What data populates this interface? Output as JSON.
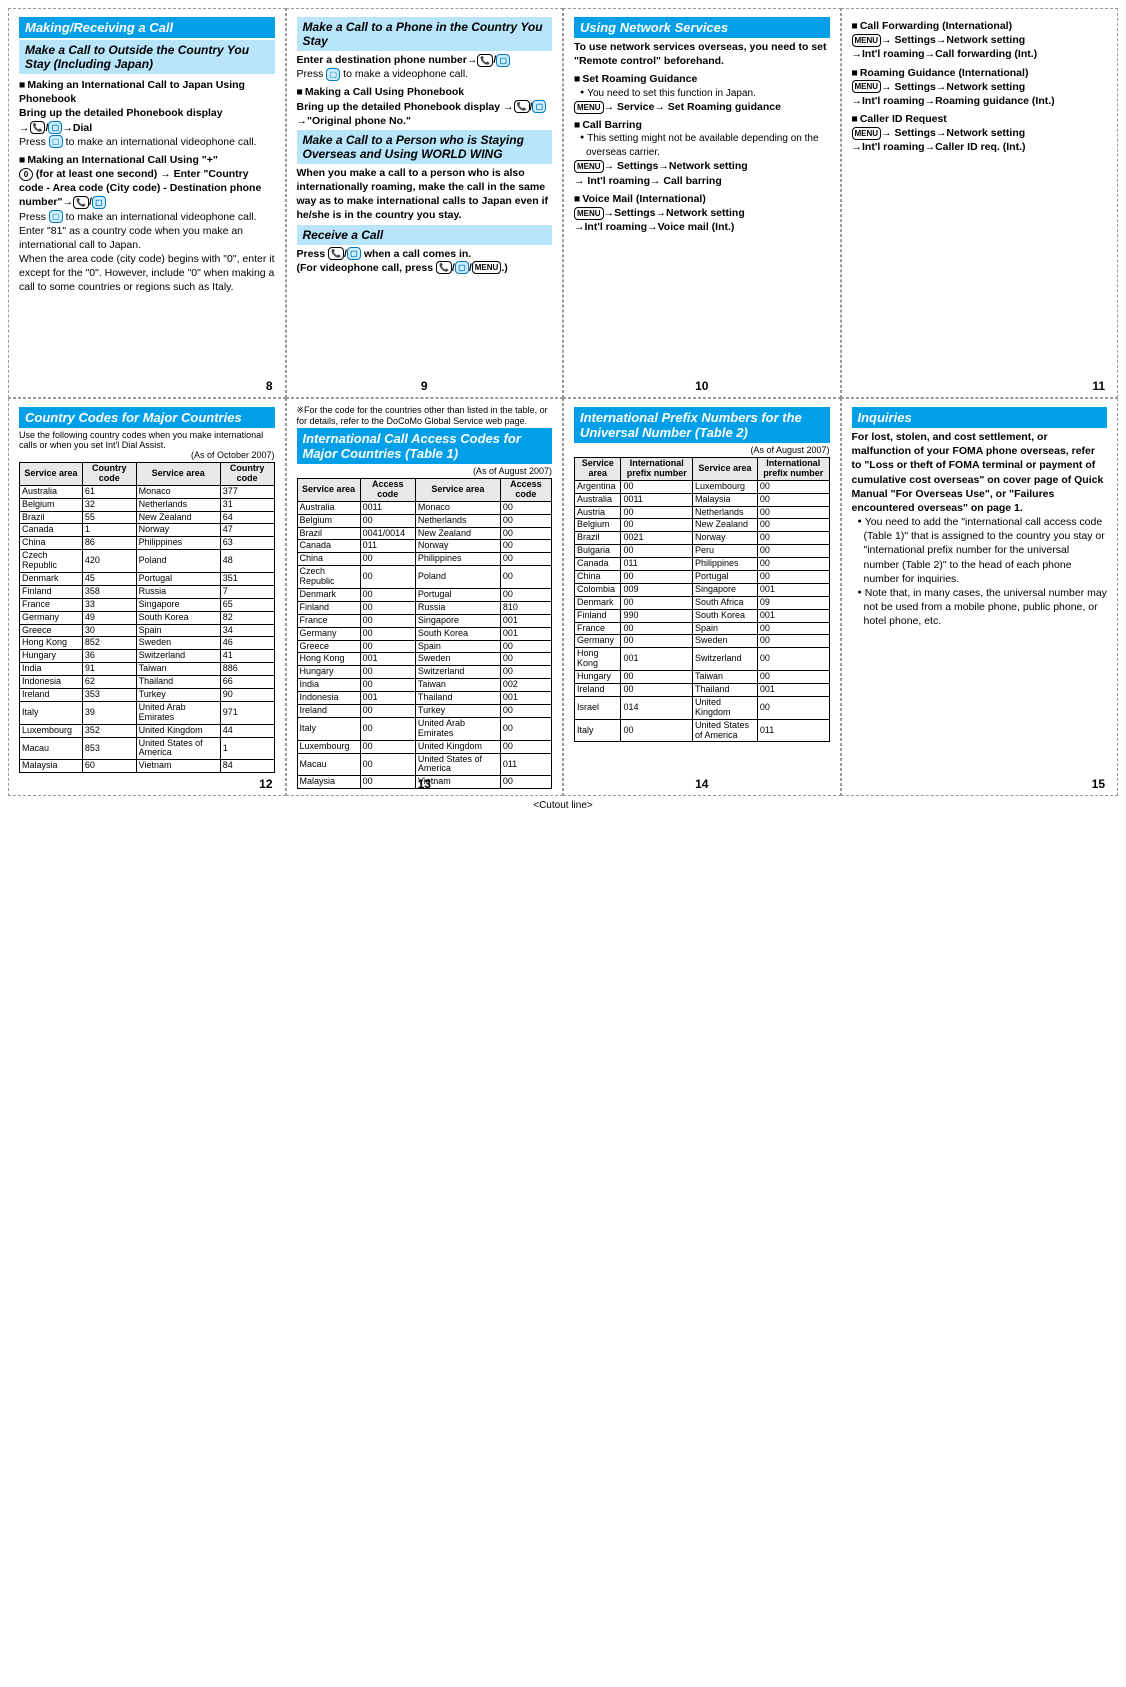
{
  "panels": {
    "p8": {
      "h1": "Making/Receiving a Call",
      "h2": "Make a Call to Outside the Country You Stay (Including Japan)",
      "s1": "Making an International Call to Japan Using Phonebook",
      "b1a": "Bring up the detailed Phonebook display",
      "b1b": "→ 📞 / 📷 →Dial",
      "b1c": "Press 📷 to make an international videophone call.",
      "s2": "Making an International Call Using \"+\"",
      "b2a": "⓪ (for at least one second) → Enter \"Country code - Area code (City code) - Destination phone number\"→ 📞 / 📷",
      "b2b": "Press 📷 to make an international videophone call.",
      "b2c": "Enter \"81\" as a country code when you make an international call to Japan.",
      "b2d": "When the area code (city code) begins with \"0\", enter it except for the \"0\". However, include \"0\" when making a call to some countries or regions such as Italy.",
      "page": "8"
    },
    "p9": {
      "h2a": "Make a Call to a Phone in the Country You Stay",
      "b1a": "Enter a destination phone number→ 📞 / 📷",
      "b1b": "Press 📷 to make a videophone call.",
      "s1": "Making a Call Using Phonebook",
      "b1c": "Bring up the detailed Phonebook display → 📞 / 📷 →\"Original phone No.\"",
      "h2b": "Make a Call to a Person who is Staying Overseas and Using WORLD WING",
      "b2": "When you make a call to a person who is also internationally roaming, make the call in the same way as to make international calls to Japan even if he/she is in the country you stay.",
      "h2c": "Receive a Call",
      "b3": "Press 📞 / 📷 when a call comes in.",
      "b4": "(For videophone call, press 📞 / 📷 / MENU .)",
      "page": "9"
    },
    "p10": {
      "h1": "Using Network Services",
      "lead": "To use network services overseas, you need to set \"Remote control\" beforehand.",
      "s1": "Set Roaming Guidance",
      "n1": "You need to set this function in Japan.",
      "b1": "MENU → Service→ Set Roaming guidance",
      "s2": "Call Barring",
      "n2": "This setting might not be available depending on the overseas carrier.",
      "b2": "MENU → Settings→Network setting → Int'l roaming→ Call barring",
      "s3": "Voice Mail (International)",
      "b3": "MENU →Settings→Network setting →Int'l roaming→Voice mail (Int.)",
      "page": "10"
    },
    "p11": {
      "s1": "Call Forwarding (International)",
      "b1": "MENU → Settings→Network setting →Int'l roaming→Call forwarding (Int.)",
      "s2": "Roaming Guidance (International)",
      "b2": "MENU → Settings→Network setting →Int'l roaming→Roaming guidance (Int.)",
      "s3": "Caller ID Request",
      "b3": "MENU → Settings→Network setting →Int'l roaming→Caller ID req. (Int.)",
      "page": "11"
    },
    "p12": {
      "h1": "Country Codes for Major Countries",
      "lead": "Use the following country codes when you make international calls or when you set Int'l Dial Assist.",
      "asof": "(As of October 2007)",
      "th1": "Service area",
      "th2": "Country code",
      "th3": "Service area",
      "th4": "Country code",
      "rows": [
        [
          "Australia",
          "61",
          "Monaco",
          "377"
        ],
        [
          "Belgium",
          "32",
          "Netherlands",
          "31"
        ],
        [
          "Brazil",
          "55",
          "New Zealand",
          "64"
        ],
        [
          "Canada",
          "1",
          "Norway",
          "47"
        ],
        [
          "China",
          "86",
          "Philippines",
          "63"
        ],
        [
          "Czech Republic",
          "420",
          "Poland",
          "48"
        ],
        [
          "Denmark",
          "45",
          "Portugal",
          "351"
        ],
        [
          "Finland",
          "358",
          "Russia",
          "7"
        ],
        [
          "France",
          "33",
          "Singapore",
          "65"
        ],
        [
          "Germany",
          "49",
          "South Korea",
          "82"
        ],
        [
          "Greece",
          "30",
          "Spain",
          "34"
        ],
        [
          "Hong Kong",
          "852",
          "Sweden",
          "46"
        ],
        [
          "Hungary",
          "36",
          "Switzerland",
          "41"
        ],
        [
          "India",
          "91",
          "Taiwan",
          "886"
        ],
        [
          "Indonesia",
          "62",
          "Thailand",
          "66"
        ],
        [
          "Ireland",
          "353",
          "Turkey",
          "90"
        ],
        [
          "Italy",
          "39",
          "United Arab Emirates",
          "971"
        ],
        [
          "Luxembourg",
          "352",
          "United Kingdom",
          "44"
        ],
        [
          "Macau",
          "853",
          "United States of America",
          "1"
        ],
        [
          "Malaysia",
          "60",
          "Vietnam",
          "84"
        ]
      ],
      "page": "12"
    },
    "p13": {
      "note": "※For the code for the countries other than listed in the table, or for details, refer to the DoCoMo Global Service web page.",
      "h1": "International Call Access Codes for Major Countries (Table 1)",
      "asof": "(As of August 2007)",
      "th1": "Service area",
      "th2": "Access code",
      "th3": "Service area",
      "th4": "Access code",
      "rows": [
        [
          "Australia",
          "0011",
          "Monaco",
          "00"
        ],
        [
          "Belgium",
          "00",
          "Netherlands",
          "00"
        ],
        [
          "Brazil",
          "0041/0014",
          "New Zealand",
          "00"
        ],
        [
          "Canada",
          "011",
          "Norway",
          "00"
        ],
        [
          "China",
          "00",
          "Philippines",
          "00"
        ],
        [
          "Czech Republic",
          "00",
          "Poland",
          "00"
        ],
        [
          "Denmark",
          "00",
          "Portugal",
          "00"
        ],
        [
          "Finland",
          "00",
          "Russia",
          "810"
        ],
        [
          "France",
          "00",
          "Singapore",
          "001"
        ],
        [
          "Germany",
          "00",
          "South Korea",
          "001"
        ],
        [
          "Greece",
          "00",
          "Spain",
          "00"
        ],
        [
          "Hong Kong",
          "001",
          "Sweden",
          "00"
        ],
        [
          "Hungary",
          "00",
          "Switzerland",
          "00"
        ],
        [
          "India",
          "00",
          "Taiwan",
          "002"
        ],
        [
          "Indonesia",
          "001",
          "Thailand",
          "001"
        ],
        [
          "Ireland",
          "00",
          "Turkey",
          "00"
        ],
        [
          "Italy",
          "00",
          "United Arab Emirates",
          "00"
        ],
        [
          "Luxembourg",
          "00",
          "United Kingdom",
          "00"
        ],
        [
          "Macau",
          "00",
          "United States of America",
          "011"
        ],
        [
          "Malaysia",
          "00",
          "Vietnam",
          "00"
        ]
      ],
      "page": "13"
    },
    "p14": {
      "h1": "International Prefix Numbers for the Universal Number (Table 2)",
      "asof": "(As of August 2007)",
      "th1": "Service area",
      "th2": "International prefix number",
      "th3": "Service area",
      "th4": "International prefix number",
      "rows": [
        [
          "Argentina",
          "00",
          "Luxembourg",
          "00"
        ],
        [
          "Australia",
          "0011",
          "Malaysia",
          "00"
        ],
        [
          "Austria",
          "00",
          "Netherlands",
          "00"
        ],
        [
          "Belgium",
          "00",
          "New Zealand",
          "00"
        ],
        [
          "Brazil",
          "0021",
          "Norway",
          "00"
        ],
        [
          "Bulgaria",
          "00",
          "Peru",
          "00"
        ],
        [
          "Canada",
          "011",
          "Philippines",
          "00"
        ],
        [
          "China",
          "00",
          "Portugal",
          "00"
        ],
        [
          "Colombia",
          "009",
          "Singapore",
          "001"
        ],
        [
          "Denmark",
          "00",
          "South Africa",
          "09"
        ],
        [
          "Finland",
          "990",
          "South Korea",
          "001"
        ],
        [
          "France",
          "00",
          "Spain",
          "00"
        ],
        [
          "Germany",
          "00",
          "Sweden",
          "00"
        ],
        [
          "Hong Kong",
          "001",
          "Switzerland",
          "00"
        ],
        [
          "Hungary",
          "00",
          "Taiwan",
          "00"
        ],
        [
          "Ireland",
          "00",
          "Thailand",
          "001"
        ],
        [
          "Israel",
          "014",
          "United Kingdom",
          "00"
        ],
        [
          "Italy",
          "00",
          "United States of America",
          "011"
        ]
      ],
      "page": "14"
    },
    "p15": {
      "h1": "Inquiries",
      "lead": "For lost, stolen, and cost settlement, or malfunction of your FOMA phone overseas, refer to \"Loss or theft of FOMA terminal or payment of cumulative cost overseas\" on cover page of Quick Manual \"For Overseas Use\", or \"Failures encountered overseas\" on page 1.",
      "n1": "You need to add the \"international call access code (Table 1)\" that is assigned to the country you stay or \"international prefix number for the universal number (Table 2)\" to the head of each phone number for inquiries.",
      "n2": "Note that, in many cases, the universal number may not be used from a mobile phone, public phone, or hotel phone, etc.",
      "page": "15"
    }
  },
  "cutout": "<Cutout line>"
}
